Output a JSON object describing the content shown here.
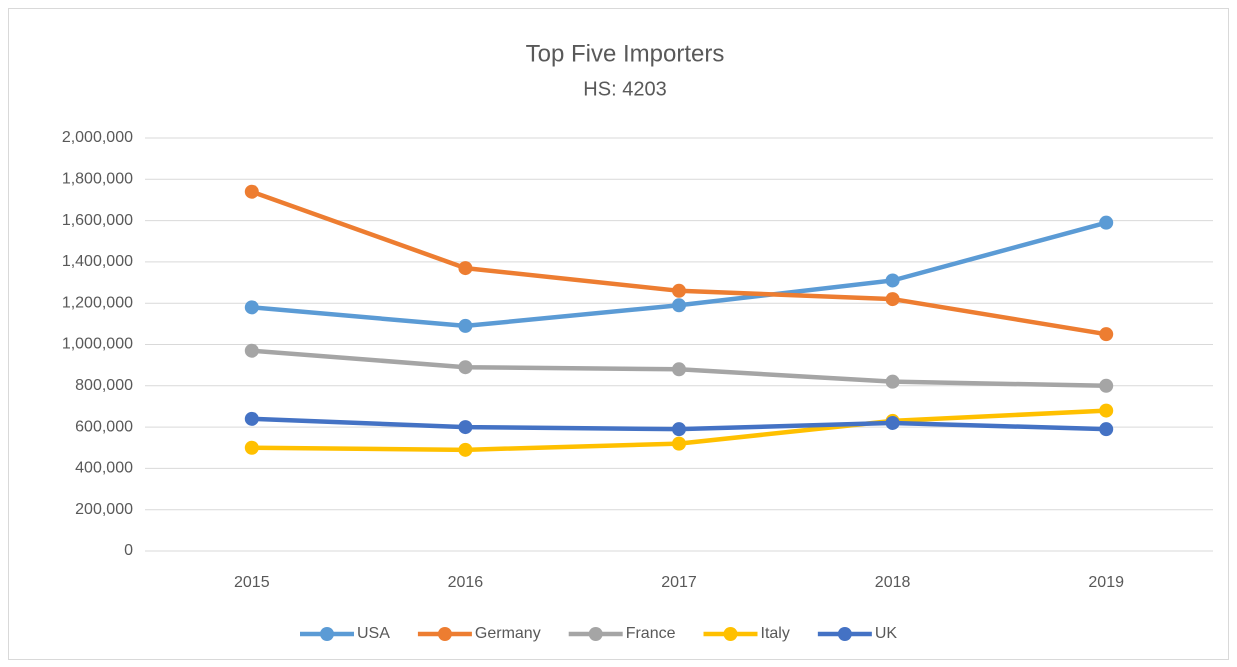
{
  "chart_data": {
    "type": "line",
    "title": "Top Five Importers",
    "subtitle": "HS: 4203",
    "categories": [
      "2015",
      "2016",
      "2017",
      "2018",
      "2019"
    ],
    "series": [
      {
        "name": "USA",
        "color": "#5b9bd5",
        "values": [
          1180000,
          1090000,
          1190000,
          1310000,
          1590000
        ]
      },
      {
        "name": "Germany",
        "color": "#ed7d31",
        "values": [
          1740000,
          1370000,
          1260000,
          1220000,
          1050000
        ]
      },
      {
        "name": "France",
        "color": "#a5a5a5",
        "values": [
          970000,
          890000,
          880000,
          820000,
          800000
        ]
      },
      {
        "name": "Italy",
        "color": "#ffc000",
        "values": [
          500000,
          490000,
          520000,
          630000,
          680000
        ]
      },
      {
        "name": "UK",
        "color": "#4472c4",
        "values": [
          640000,
          600000,
          590000,
          620000,
          590000
        ]
      }
    ],
    "ylim": [
      0,
      2000000
    ],
    "yticks": [
      0,
      {
        "value": 200000,
        "label": "200,000"
      },
      {
        "value": 400000,
        "label": "400,000"
      },
      {
        "value": 600000,
        "label": "600,000"
      },
      {
        "value": 800000,
        "label": "800,000"
      },
      {
        "value": 1000000,
        "label": "1,000,000"
      },
      {
        "value": 1200000,
        "label": "1,200,000"
      },
      {
        "value": 1400000,
        "label": "1,400,000"
      },
      {
        "value": 1600000,
        "label": "1,600,000"
      },
      {
        "value": 1800000,
        "label": "1,800,000"
      },
      {
        "value": 2000000,
        "label": "2,000,000"
      }
    ],
    "grid": true,
    "legend": "bottom"
  }
}
